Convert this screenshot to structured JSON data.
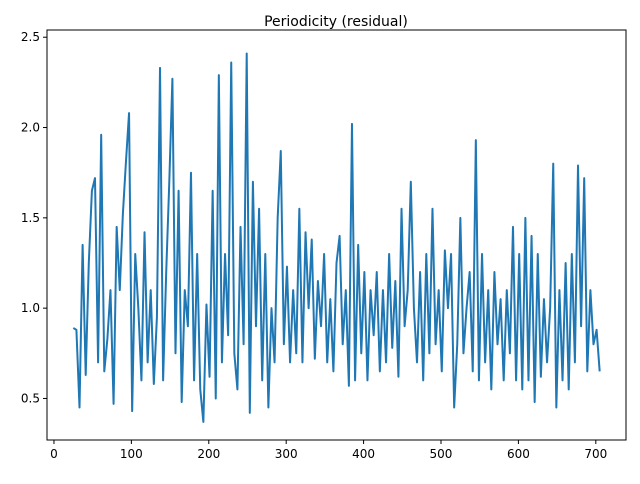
{
  "chart_data": {
    "type": "line",
    "title": "Periodicity (residual)",
    "x": [
      25,
      29,
      33,
      37,
      41,
      45,
      49,
      53,
      57,
      61,
      65,
      69,
      73,
      77,
      81,
      85,
      89,
      93,
      97,
      101,
      105,
      109,
      113,
      117,
      121,
      125,
      129,
      133,
      137,
      141,
      145,
      149,
      153,
      157,
      161,
      165,
      169,
      173,
      177,
      181,
      185,
      189,
      193,
      197,
      201,
      205,
      209,
      213,
      217,
      221,
      225,
      229,
      233,
      237,
      241,
      245,
      249,
      253,
      257,
      261,
      265,
      269,
      273,
      277,
      281,
      285,
      289,
      293,
      297,
      301,
      305,
      309,
      313,
      317,
      321,
      325,
      329,
      333,
      337,
      341,
      345,
      349,
      353,
      357,
      361,
      365,
      369,
      373,
      377,
      381,
      385,
      389,
      393,
      397,
      401,
      405,
      409,
      413,
      417,
      421,
      425,
      429,
      433,
      437,
      441,
      445,
      449,
      453,
      457,
      461,
      465,
      469,
      473,
      477,
      481,
      485,
      489,
      493,
      497,
      501,
      505,
      509,
      513,
      517,
      521,
      525,
      529,
      533,
      537,
      541,
      545,
      549,
      553,
      557,
      561,
      565,
      569,
      573,
      577,
      581,
      585,
      589,
      593,
      597,
      601,
      605,
      609,
      613,
      617,
      621,
      625,
      629,
      633,
      637,
      641,
      645,
      649,
      653,
      657,
      661,
      665,
      669,
      673,
      677,
      681,
      685,
      689,
      693,
      697,
      701,
      705
    ],
    "series": [
      {
        "color": "#1f77b4",
        "values": [
          0.89,
          0.88,
          0.45,
          1.35,
          0.63,
          1.25,
          1.65,
          1.72,
          0.7,
          1.96,
          0.65,
          0.83,
          1.1,
          0.47,
          1.45,
          1.1,
          1.52,
          1.81,
          2.08,
          0.43,
          1.3,
          1.0,
          0.6,
          1.42,
          0.7,
          1.1,
          0.58,
          0.95,
          2.33,
          0.6,
          1.2,
          1.7,
          2.27,
          0.75,
          1.65,
          0.48,
          1.1,
          0.9,
          1.75,
          0.6,
          1.3,
          0.55,
          0.37,
          1.02,
          0.62,
          1.65,
          0.5,
          2.29,
          0.7,
          1.3,
          0.85,
          2.36,
          0.75,
          0.55,
          1.45,
          0.8,
          2.41,
          0.42,
          1.7,
          0.9,
          1.55,
          0.6,
          1.3,
          0.45,
          1.0,
          0.7,
          1.5,
          1.87,
          0.8,
          1.23,
          0.7,
          1.1,
          0.75,
          1.55,
          0.7,
          1.42,
          1.0,
          1.38,
          0.72,
          1.15,
          0.9,
          1.3,
          0.7,
          1.05,
          0.65,
          1.25,
          1.4,
          0.8,
          1.1,
          0.57,
          2.02,
          0.6,
          1.35,
          0.75,
          1.2,
          0.6,
          1.1,
          0.85,
          1.2,
          0.65,
          1.1,
          0.7,
          1.3,
          0.78,
          1.15,
          0.62,
          1.55,
          0.9,
          1.1,
          1.7,
          1.0,
          0.7,
          1.2,
          0.6,
          1.3,
          0.75,
          1.55,
          0.8,
          1.1,
          0.65,
          1.32,
          1.0,
          1.3,
          0.45,
          0.8,
          1.5,
          0.75,
          1.0,
          1.2,
          0.65,
          1.93,
          0.6,
          1.3,
          0.7,
          1.1,
          0.55,
          1.2,
          0.8,
          1.05,
          0.6,
          1.1,
          0.75,
          1.45,
          0.6,
          1.3,
          0.55,
          1.5,
          0.6,
          1.4,
          0.48,
          1.3,
          0.62,
          1.05,
          0.7,
          1.0,
          1.8,
          0.45,
          1.1,
          0.6,
          1.25,
          0.55,
          1.3,
          0.7,
          1.79,
          0.9,
          1.72,
          0.65,
          1.1,
          0.8,
          0.88,
          0.65
        ]
      }
    ],
    "xlim": [
      -9,
      739
    ],
    "xticks": [
      0,
      100,
      200,
      300,
      400,
      500,
      600,
      700
    ],
    "ylim": [
      0.27,
      2.54
    ],
    "yticks": [
      0.5,
      {
        "value": 1,
        "label": "1.0"
      },
      1.5,
      {
        "value": 2,
        "label": "2.0"
      },
      2.5
    ],
    "grid": false
  }
}
